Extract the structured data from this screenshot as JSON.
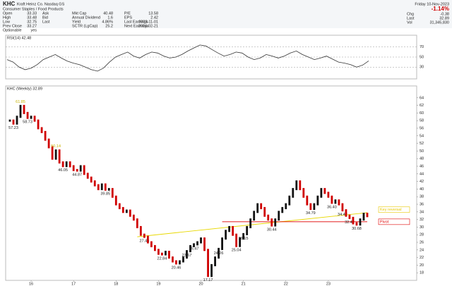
{
  "header": {
    "symbol": "KHC",
    "company": "Kraft Heinz Co.  Nasdaq GS",
    "sector": "Consumer Staples / Food Products",
    "columns": [
      [
        {
          "label": "Open",
          "value": "33.33"
        },
        {
          "label": "High",
          "value": "33.48"
        },
        {
          "label": "Low",
          "value": "32.75"
        },
        {
          "label": "Prev Close",
          "value": "33.27"
        },
        {
          "label": "Optionable",
          "value": "yes"
        }
      ],
      [
        {
          "label": "Ask"
        },
        {
          "label": "Bid"
        },
        {
          "label": "Last"
        }
      ],
      [
        {
          "label": "Mkt Cap",
          "value": "40.48"
        },
        {
          "label": "Annual Dividend",
          "value": "1.6"
        },
        {
          "label": "Yield",
          "value": "4.86%"
        },
        {
          "label": "SCTR (LgCap)",
          "value": "25.2"
        }
      ],
      [
        {
          "label": "P/E",
          "value": "13.58"
        },
        {
          "label": "EPS",
          "value": "2.42"
        },
        {
          "label": "Last Earnings",
          "value": "2023-11-01"
        },
        {
          "label": "Next Earnings",
          "value": "2024-02-21"
        }
      ]
    ],
    "date": "Friday 10-Nov-2023",
    "change_pct": "-1.14%",
    "right": [
      {
        "label": "Chg",
        "value": "-0.38"
      },
      {
        "label": "Last",
        "value": "32.89"
      },
      {
        "label": "Vol",
        "value": "31,345,830"
      }
    ]
  },
  "chart_data": [
    {
      "type": "line",
      "title": "RSI(14) 42.48",
      "color": "#333",
      "values": [
        45,
        40,
        30,
        25,
        28,
        35,
        45,
        50,
        55,
        48,
        42,
        38,
        35,
        30,
        25,
        22,
        28,
        40,
        50,
        55,
        60,
        52,
        48,
        55,
        60,
        58,
        52,
        48,
        50,
        55,
        62,
        68,
        74,
        72,
        65,
        58,
        52,
        55,
        60,
        58,
        50,
        45,
        48,
        55,
        52,
        48,
        52,
        58,
        62,
        55,
        50,
        45,
        48,
        52,
        46,
        40,
        38,
        35,
        30,
        34,
        42.48
      ],
      "ylim": [
        15,
        85
      ],
      "yticks": [
        30,
        50,
        70
      ]
    },
    {
      "type": "candle",
      "title": "KHC (Weekly) 32.89",
      "up_color": "#111",
      "down_color": "#d00000",
      "values": [
        58,
        57.23,
        59,
        61.85,
        60,
        58.73,
        59,
        58,
        56,
        55,
        53,
        51,
        48,
        50.14,
        47,
        46.05,
        47,
        46,
        45,
        44.87,
        46,
        44,
        43,
        42,
        41,
        40,
        41.2,
        39.85,
        40,
        38,
        36,
        35,
        34,
        34.33,
        33,
        32,
        30,
        28,
        27.46,
        26,
        25,
        24,
        23,
        22.84,
        23.5,
        22,
        21,
        20.46,
        21,
        22,
        23.67,
        25,
        25.47,
        26,
        27,
        24,
        17.17,
        20,
        22,
        24.26,
        27,
        29,
        30,
        28,
        25.04,
        27,
        28.15,
        30,
        32,
        34,
        36,
        35,
        33,
        32,
        30.44,
        32,
        34,
        35,
        36,
        38,
        40,
        42,
        40,
        38,
        36,
        34.79,
        36,
        38,
        40,
        39,
        38,
        36.4,
        37,
        36,
        34.42,
        33,
        32.42,
        31,
        30.68,
        32,
        33.5,
        32.89
      ],
      "value_labels": [
        null,
        "57.23",
        null,
        "61.85",
        null,
        "58.73",
        null,
        null,
        null,
        null,
        null,
        null,
        null,
        "50.14",
        null,
        "46.05",
        null,
        null,
        null,
        "44.87",
        null,
        null,
        null,
        null,
        null,
        null,
        null,
        "39.85",
        null,
        null,
        null,
        null,
        null,
        null,
        null,
        null,
        null,
        null,
        "27.46",
        null,
        null,
        null,
        null,
        "22.84",
        null,
        null,
        null,
        "20.46",
        null,
        null,
        "23.67",
        null,
        "25.47",
        null,
        null,
        null,
        "17.17",
        null,
        null,
        "24.26",
        null,
        null,
        null,
        null,
        "25.04",
        null,
        "28.15",
        null,
        null,
        null,
        null,
        null,
        null,
        null,
        "30.44",
        null,
        null,
        null,
        null,
        null,
        null,
        null,
        null,
        null,
        null,
        "34.79",
        null,
        null,
        null,
        null,
        null,
        "36.40",
        null,
        null,
        "34.42",
        null,
        "32.42",
        null,
        "30.68",
        null,
        null,
        null
      ],
      "ylim": [
        16,
        66
      ],
      "yticks": [
        18,
        20,
        22,
        24,
        26,
        28,
        30,
        32,
        34,
        36,
        38,
        40,
        42,
        44,
        46,
        48,
        50,
        52,
        54,
        56,
        58,
        60,
        62,
        64
      ],
      "xticks": [
        {
          "value": 6,
          "label": "16"
        },
        {
          "value": 18,
          "label": "17"
        },
        {
          "value": 30,
          "label": "18"
        },
        {
          "value": 42,
          "label": "19"
        },
        {
          "value": 54,
          "label": "20"
        },
        {
          "value": 66,
          "label": "21"
        },
        {
          "value": 78,
          "label": "22"
        },
        {
          "value": 90,
          "label": "23"
        }
      ],
      "trendline": {
        "color": "#e8d800",
        "x": [
          36,
          101
        ],
        "values": [
          27.46,
          33.8
        ]
      },
      "pivot": {
        "color": "#e00000",
        "x": [
          60,
          101
        ],
        "values": [
          31.4,
          31.4
        ]
      },
      "annotations": [
        {
          "text": "Key reversal",
          "x": 101,
          "y": 34.6,
          "color": "#e8c800"
        },
        {
          "text": "Pivot",
          "x": 101,
          "y": 31.4,
          "color": "#e00000"
        }
      ]
    }
  ]
}
